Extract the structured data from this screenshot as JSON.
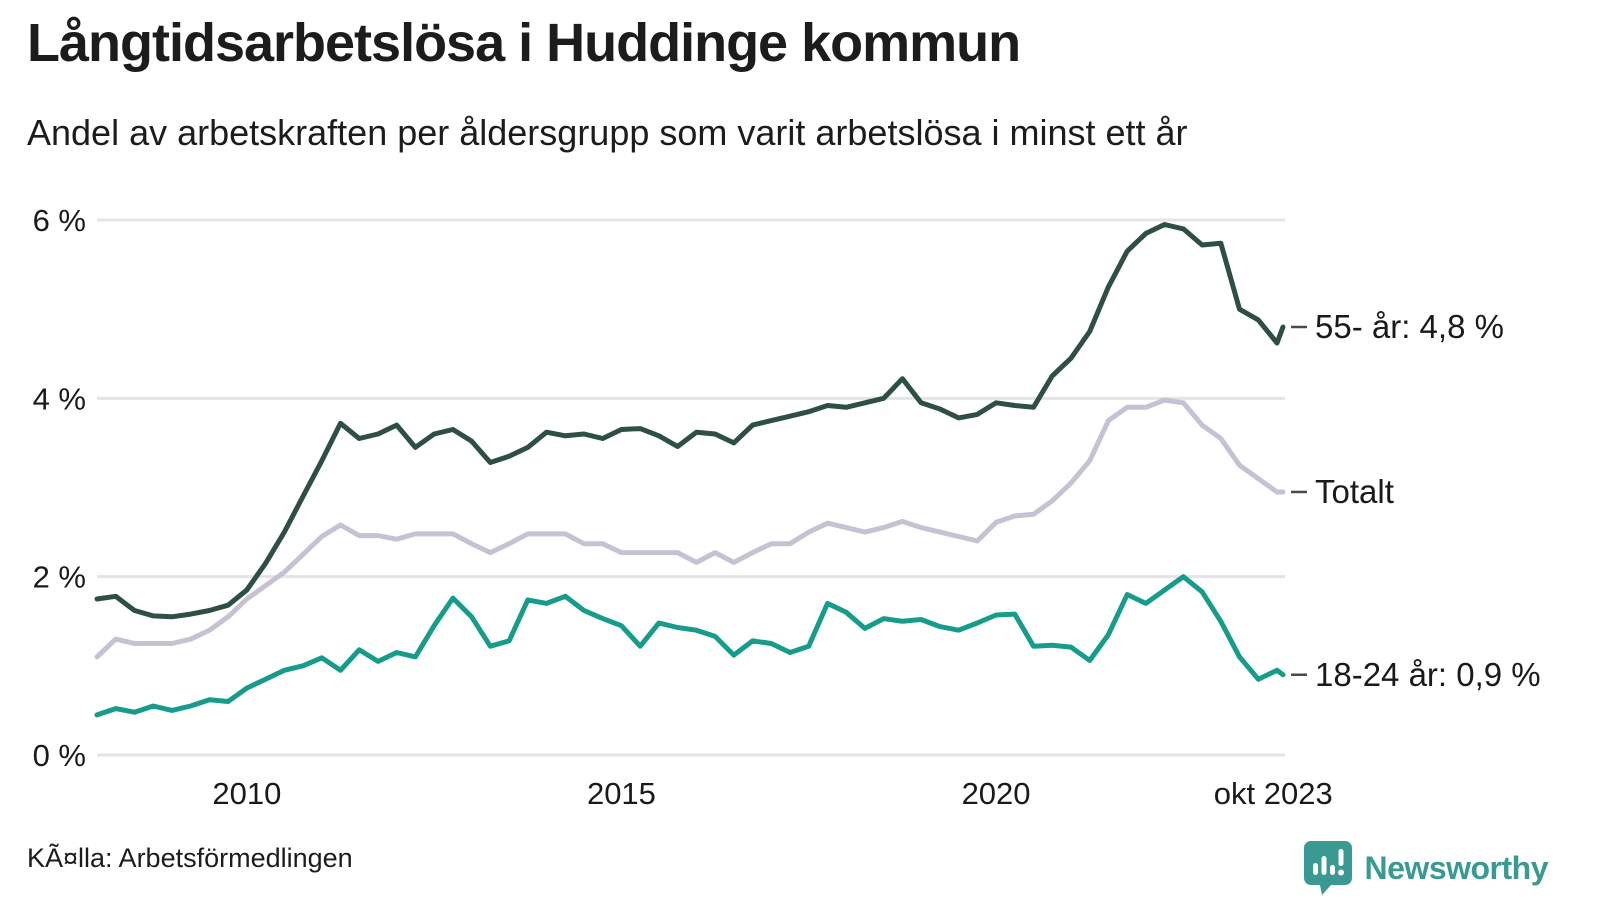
{
  "header": {
    "title": "Långtidsarbetslösa i Huddinge kommun",
    "subtitle": "Andel av arbetskraften per åldersgrupp som varit arbetslösa i minst ett år"
  },
  "footer": {
    "source": "KÃ¤lla: Arbetsförmedlingen",
    "logo_text": "Newsworthy"
  },
  "colors": {
    "series_55": "#2e4f45",
    "series_total": "#c6c2d4",
    "series_18_24": "#179c8c",
    "grid": "#e4e3e8",
    "text": "#1a1a1a",
    "label_dash": "#4a4a4a",
    "logo": "#3a9a93"
  },
  "chart_data": {
    "type": "line",
    "title": "Långtidsarbetslösa i Huddinge kommun",
    "subtitle": "Andel av arbetskraften per åldersgrupp som varit arbetslösa i minst ett år",
    "grid": "horizontal",
    "legend_position": "right-end-labels",
    "xlim": [
      2008.0,
      2023.83
    ],
    "ylim": [
      0,
      6.3
    ],
    "x": [
      2008.0,
      2008.25,
      2008.5,
      2008.75,
      2009.0,
      2009.25,
      2009.5,
      2009.75,
      2010.0,
      2010.25,
      2010.5,
      2010.75,
      2011.0,
      2011.25,
      2011.5,
      2011.75,
      2012.0,
      2012.25,
      2012.5,
      2012.75,
      2013.0,
      2013.25,
      2013.5,
      2013.75,
      2014.0,
      2014.25,
      2014.5,
      2014.75,
      2015.0,
      2015.25,
      2015.5,
      2015.75,
      2016.0,
      2016.25,
      2016.5,
      2016.75,
      2017.0,
      2017.25,
      2017.5,
      2017.75,
      2018.0,
      2018.25,
      2018.5,
      2018.75,
      2019.0,
      2019.25,
      2019.5,
      2019.75,
      2020.0,
      2020.25,
      2020.5,
      2020.75,
      2021.0,
      2021.25,
      2021.5,
      2021.75,
      2022.0,
      2022.25,
      2022.5,
      2022.75,
      2023.0,
      2023.25,
      2023.5,
      2023.75,
      2023.83
    ],
    "series": [
      {
        "name": "55- år",
        "end_label": "55- år: 4,8 %",
        "end_value": 4.8,
        "color": "#2e4f45",
        "values": [
          1.75,
          1.78,
          1.62,
          1.56,
          1.55,
          1.58,
          1.62,
          1.68,
          1.85,
          2.15,
          2.5,
          2.9,
          3.3,
          3.72,
          3.55,
          3.6,
          3.7,
          3.45,
          3.6,
          3.65,
          3.52,
          3.28,
          3.35,
          3.45,
          3.62,
          3.58,
          3.6,
          3.55,
          3.65,
          3.66,
          3.58,
          3.46,
          3.62,
          3.6,
          3.5,
          3.7,
          3.75,
          3.8,
          3.85,
          3.92,
          3.9,
          3.95,
          4.0,
          4.22,
          3.95,
          3.88,
          3.78,
          3.82,
          3.95,
          3.92,
          3.9,
          4.25,
          4.45,
          4.75,
          5.25,
          5.65,
          5.85,
          5.95,
          5.9,
          5.72,
          5.74,
          5.0,
          4.88,
          4.62,
          4.8
        ]
      },
      {
        "name": "Totalt",
        "end_label": "Totalt",
        "end_value": 2.95,
        "color": "#c6c2d4",
        "values": [
          1.1,
          1.3,
          1.25,
          1.25,
          1.25,
          1.3,
          1.4,
          1.55,
          1.75,
          1.9,
          2.05,
          2.25,
          2.45,
          2.58,
          2.46,
          2.46,
          2.42,
          2.48,
          2.48,
          2.48,
          2.37,
          2.27,
          2.37,
          2.48,
          2.48,
          2.48,
          2.37,
          2.37,
          2.27,
          2.27,
          2.27,
          2.27,
          2.16,
          2.27,
          2.16,
          2.27,
          2.37,
          2.37,
          2.5,
          2.6,
          2.55,
          2.5,
          2.55,
          2.62,
          2.55,
          2.5,
          2.45,
          2.4,
          2.61,
          2.68,
          2.7,
          2.85,
          3.05,
          3.3,
          3.75,
          3.9,
          3.9,
          3.98,
          3.95,
          3.7,
          3.55,
          3.25,
          3.1,
          2.95,
          2.95
        ]
      },
      {
        "name": "18-24 år",
        "end_label": "18-24 år: 0,9 %",
        "end_value": 0.9,
        "color": "#179c8c",
        "values": [
          0.45,
          0.52,
          0.48,
          0.55,
          0.5,
          0.55,
          0.62,
          0.6,
          0.75,
          0.85,
          0.95,
          1.0,
          1.09,
          0.95,
          1.18,
          1.05,
          1.15,
          1.1,
          1.45,
          1.76,
          1.55,
          1.22,
          1.28,
          1.74,
          1.7,
          1.78,
          1.62,
          1.53,
          1.45,
          1.22,
          1.48,
          1.43,
          1.4,
          1.33,
          1.12,
          1.28,
          1.25,
          1.15,
          1.22,
          1.7,
          1.6,
          1.42,
          1.53,
          1.5,
          1.52,
          1.44,
          1.4,
          1.48,
          1.57,
          1.58,
          1.22,
          1.23,
          1.21,
          1.06,
          1.35,
          1.8,
          1.7,
          1.85,
          2.0,
          1.83,
          1.5,
          1.1,
          0.85,
          0.95,
          0.9
        ]
      }
    ],
    "yticks": [
      {
        "value": 0,
        "label": "0 %"
      },
      {
        "value": 2,
        "label": "2 %"
      },
      {
        "value": 4,
        "label": "4 %"
      },
      {
        "value": 6,
        "label": "6 %"
      }
    ],
    "xticks": [
      {
        "value": 2010,
        "label": "2010"
      },
      {
        "value": 2015,
        "label": "2015"
      },
      {
        "value": 2020,
        "label": "2020"
      },
      {
        "value": 2023.7,
        "label": "okt 2023"
      }
    ]
  }
}
